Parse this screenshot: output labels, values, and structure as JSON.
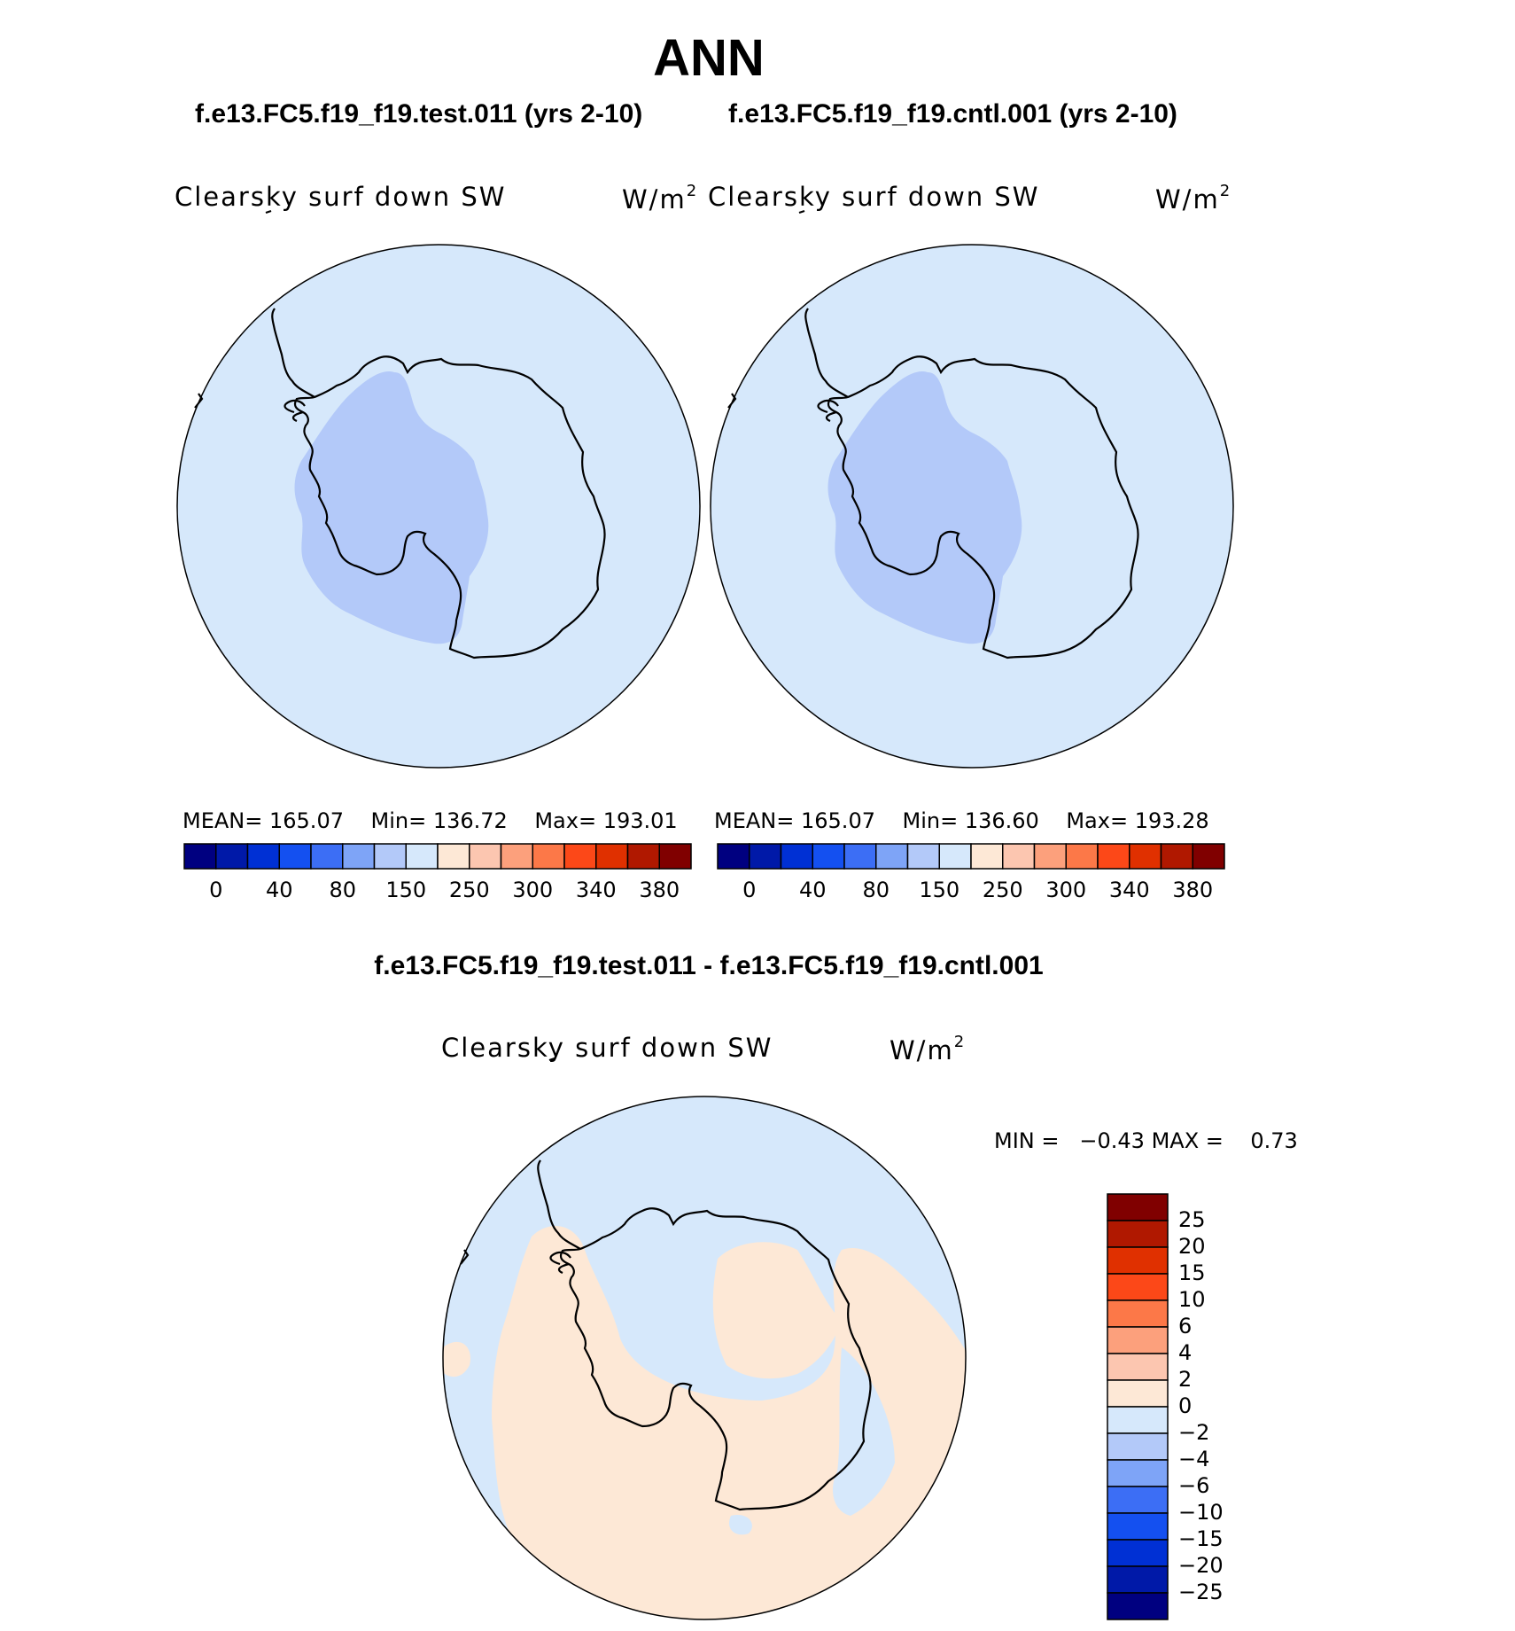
{
  "chart_data": [
    {
      "type": "heatmap",
      "panel": "test",
      "title": "ANN",
      "case": "f.e13.FC5.f19_f19.test.011 (yrs 2-10)",
      "variable": "Clearsky surf down SW",
      "units_base": "W/m",
      "units_exp": "2",
      "projection": "south polar stereographic",
      "mean_label": "MEAN=",
      "mean": "165.07",
      "min_label": "Min=",
      "min": "136.72",
      "max_label": "Max=",
      "max": "193.01",
      "colorbar_ticks": [
        "0",
        "40",
        "80",
        "150",
        "250",
        "300",
        "340",
        "380"
      ]
    },
    {
      "type": "heatmap",
      "panel": "control",
      "case": "f.e13.FC5.f19_f19.cntl.001 (yrs 2-10)",
      "variable": "Clearsky surf down SW",
      "units_base": "W/m",
      "units_exp": "2",
      "projection": "south polar stereographic",
      "mean_label": "MEAN=",
      "mean": "165.07",
      "min_label": "Min=",
      "min": "136.60",
      "max_label": "Max=",
      "max": "193.28",
      "colorbar_ticks": [
        "0",
        "40",
        "80",
        "150",
        "250",
        "300",
        "340",
        "380"
      ]
    },
    {
      "type": "heatmap",
      "panel": "difference",
      "case": "f.e13.FC5.f19_f19.test.011 - f.e13.FC5.f19_f19.cntl.001",
      "variable": "Clearsky surf down SW",
      "units_base": "W/m",
      "units_exp": "2",
      "projection": "south polar stereographic",
      "min_label": "MIN =",
      "min": "−0.43",
      "max_label": "MAX =",
      "max": "0.73",
      "colorbar_ticks": [
        "25",
        "20",
        "15",
        "10",
        "6",
        "4",
        "2",
        "0",
        "−2",
        "−4",
        "−6",
        "−10",
        "−15",
        "−20",
        "−25"
      ]
    }
  ],
  "colors": {
    "levels": [
      "#000080",
      "#0019a8",
      "#0030d4",
      "#1450f0",
      "#3c6ef5",
      "#7ea4f7",
      "#b3c9f9",
      "#d6e8fb",
      "#fde8d6",
      "#fcc6b0",
      "#fca07c",
      "#fc7848",
      "#fc4818",
      "#e03000",
      "#b01800",
      "#800000"
    ],
    "ocean": "#d6e8fb",
    "interior_low": "#b3c9f9",
    "diff_positive": "#fde8d6"
  }
}
